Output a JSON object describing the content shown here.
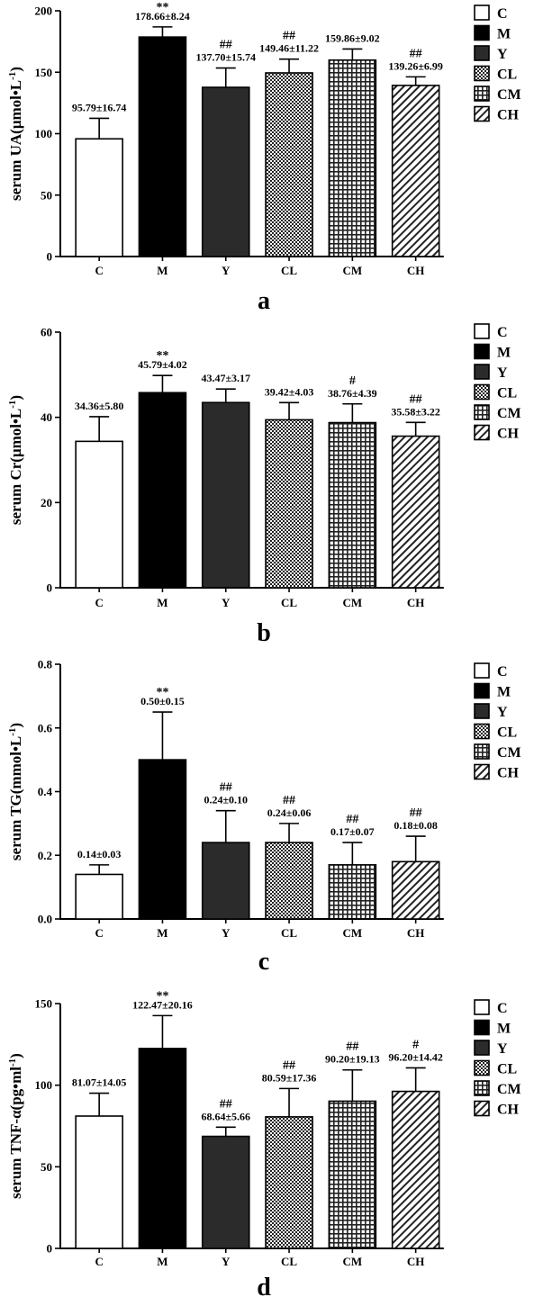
{
  "legend": [
    {
      "key": "C",
      "pattern": "white"
    },
    {
      "key": "M",
      "pattern": "black"
    },
    {
      "key": "Y",
      "pattern": "dark"
    },
    {
      "key": "CL",
      "pattern": "dots"
    },
    {
      "key": "CM",
      "pattern": "grid"
    },
    {
      "key": "CH",
      "pattern": "diag"
    }
  ],
  "chart_data": [
    {
      "type": "bar",
      "panel": "a",
      "ylabel": "serum UA(μmol•L",
      "ylabel_sup": "-1",
      "ylabel_end": ")",
      "categories": [
        "C",
        "M",
        "Y",
        "CL",
        "CM",
        "CH"
      ],
      "values": [
        95.79,
        178.66,
        137.7,
        149.46,
        159.86,
        139.26
      ],
      "errors": [
        16.74,
        8.24,
        15.74,
        11.22,
        9.02,
        6.99
      ],
      "value_labels": [
        "95.79±16.74",
        "178.66±8.24",
        "137.70±15.74",
        "149.46±11.22",
        "159.86±9.02",
        "139.26±6.99"
      ],
      "significance": [
        "",
        "**",
        "##",
        "##",
        "",
        "##"
      ],
      "ylim": [
        0,
        200
      ],
      "yticks": [
        0,
        50,
        100,
        150,
        200
      ],
      "ytick_labels": [
        "0",
        "50",
        "100",
        "150",
        "200"
      ]
    },
    {
      "type": "bar",
      "panel": "b",
      "ylabel": "serum Cr(μmol•L",
      "ylabel_sup": "-1",
      "ylabel_end": ")",
      "categories": [
        "C",
        "M",
        "Y",
        "CL",
        "CM",
        "CH"
      ],
      "values": [
        34.36,
        45.79,
        43.47,
        39.42,
        38.76,
        35.58
      ],
      "errors": [
        5.8,
        4.02,
        3.17,
        4.03,
        4.39,
        3.22
      ],
      "value_labels": [
        "34.36±5.80",
        "45.79±4.02",
        "43.47±3.17",
        "39.42±4.03",
        "38.76±4.39",
        "35.58±3.22"
      ],
      "significance": [
        "",
        "**",
        "",
        "",
        "#",
        "##"
      ],
      "ylim": [
        0,
        60
      ],
      "yticks": [
        0,
        20,
        40,
        60
      ],
      "ytick_labels": [
        "0",
        "20",
        "40",
        "60"
      ]
    },
    {
      "type": "bar",
      "panel": "c",
      "ylabel": "serum TG(mmol•L",
      "ylabel_sup": "-1",
      "ylabel_end": ")",
      "categories": [
        "C",
        "M",
        "Y",
        "CL",
        "CM",
        "CH"
      ],
      "values": [
        0.14,
        0.5,
        0.24,
        0.24,
        0.17,
        0.18
      ],
      "errors": [
        0.03,
        0.15,
        0.1,
        0.06,
        0.07,
        0.08
      ],
      "value_labels": [
        "0.14±0.03",
        "0.50±0.15",
        "0.24±0.10",
        "0.24±0.06",
        "0.17±0.07",
        "0.18±0.08"
      ],
      "significance": [
        "",
        "**",
        "##",
        "##",
        "##",
        "##"
      ],
      "ylim": [
        0,
        0.8
      ],
      "yticks": [
        0,
        0.2,
        0.4,
        0.6,
        0.8
      ],
      "ytick_labels": [
        "0.0",
        "0.2",
        "0.4",
        "0.6",
        "0.8"
      ]
    },
    {
      "type": "bar",
      "panel": "d",
      "ylabel": "serum TNF-α(pg•ml",
      "ylabel_sup": "-1",
      "ylabel_end": ")",
      "categories": [
        "C",
        "M",
        "Y",
        "CL",
        "CM",
        "CH"
      ],
      "values": [
        81.07,
        122.47,
        68.64,
        80.59,
        90.2,
        96.2
      ],
      "errors": [
        14.05,
        20.16,
        5.66,
        17.36,
        19.13,
        14.42
      ],
      "value_labels": [
        "81.07±14.05",
        "122.47±20.16",
        "68.64±5.66",
        "80.59±17.36",
        "90.20±19.13",
        "96.20±14.42"
      ],
      "significance": [
        "",
        "**",
        "##",
        "##",
        "##",
        "#"
      ],
      "ylim": [
        0,
        150
      ],
      "yticks": [
        0,
        50,
        100,
        150
      ],
      "ytick_labels": [
        "0",
        "50",
        "100",
        "150"
      ]
    }
  ]
}
